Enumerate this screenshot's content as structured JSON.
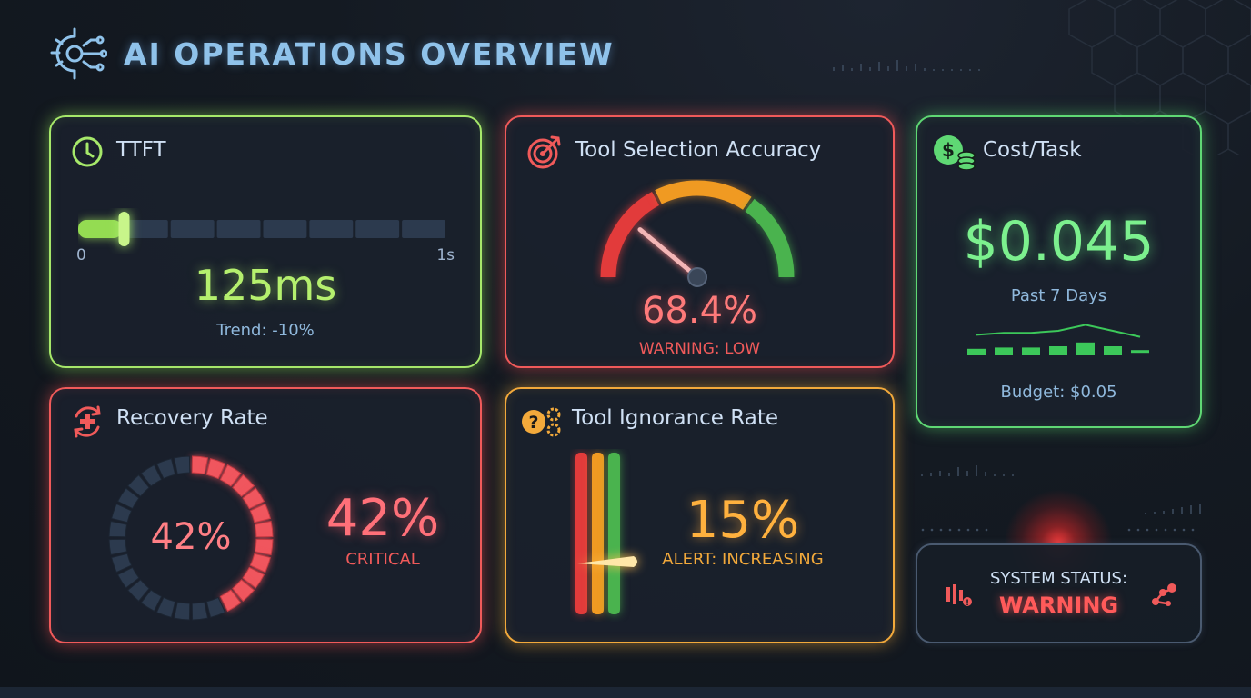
{
  "header": {
    "title": "AI OPERATIONS OVERVIEW",
    "icon": "gear-circuit-icon"
  },
  "colors": {
    "green_light": "#a6e86a",
    "red": "#f05a5a",
    "green": "#5fd874",
    "orange": "#f2a93b",
    "title_blue": "#8fc2ea"
  },
  "ttft": {
    "title": "TTFT",
    "icon": "clock-icon",
    "scale_min": "0",
    "scale_max": "1s",
    "value": "125ms",
    "trend": "Trend: -10%",
    "level_fraction": 0.125
  },
  "tool_selection": {
    "title": "Tool Selection Accuracy",
    "icon": "target-icon",
    "value": "68.4%",
    "status": "WARNING: LOW",
    "gauge_percent": 68.4
  },
  "cost": {
    "title": "Cost/Task",
    "icon": "dollar-coins-icon",
    "value": "$0.045",
    "period": "Past 7 Days",
    "budget": "Budget: $0.05",
    "sparkline": [
      3,
      4,
      4,
      5,
      8,
      5,
      2
    ]
  },
  "recovery": {
    "title": "Recovery Rate",
    "icon": "recovery-cross-icon",
    "ring_value": "42%",
    "value": "42%",
    "status": "CRITICAL",
    "ring_percent": 42
  },
  "ignorance": {
    "title": "Tool Ignorance Rate",
    "icon": "question-gears-icon",
    "value": "15%",
    "status": "ALERT: INCREASING",
    "level_percent": 15
  },
  "system": {
    "label": "SYSTEM STATUS:",
    "status": "WARNING",
    "left_icon": "alert-equalizer-icon",
    "right_icon": "alert-nodes-icon"
  }
}
